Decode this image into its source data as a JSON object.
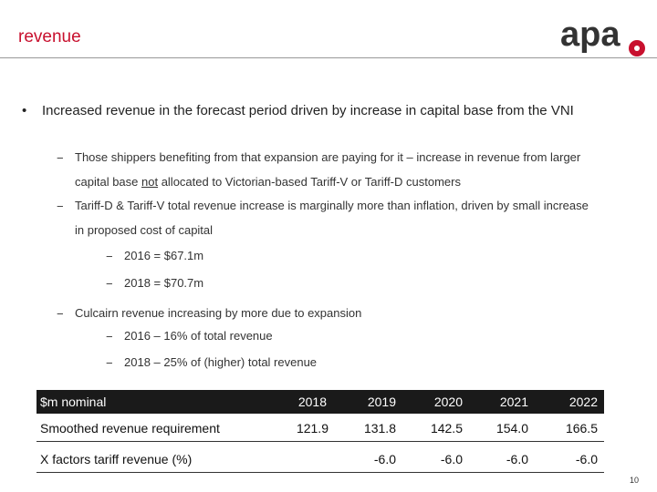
{
  "slide": {
    "title": "revenue",
    "page_number": "10"
  },
  "logo": {
    "text": "apa"
  },
  "bullet": {
    "symbol": "•",
    "text": "Increased revenue in the forecast period driven by increase in capital base from the VNI"
  },
  "sub_bullets": [
    {
      "dash": "−",
      "line1": "Those shippers benefiting from that expansion are paying for it – increase in revenue from  larger",
      "line2_pre": "capital base ",
      "line2_u": "not",
      "line2_post": " allocated to Victorian-based Tariff-V or Tariff-D customers"
    },
    {
      "dash": "−",
      "line1": "Tariff-D & Tariff-V total revenue increase is marginally more than inflation, driven by small increase",
      "line2": "in proposed cost of capital"
    },
    {
      "dash": "−",
      "line1": "Culcairn revenue increasing by more due to expansion"
    }
  ],
  "sub_sub": [
    {
      "dash": "−",
      "text": "2016 = $67.1m"
    },
    {
      "dash": "−",
      "text": "2018 = $70.7m"
    },
    {
      "dash": "−",
      "text": "2016 – 16% of total revenue"
    },
    {
      "dash": "−",
      "text": "2018 – 25% of (higher) total revenue"
    }
  ],
  "table": {
    "header": [
      "$m nominal",
      "2018",
      "2019",
      "2020",
      "2021",
      "2022"
    ],
    "rows": [
      [
        "Smoothed revenue requirement",
        "121.9",
        "131.8",
        "142.5",
        "154.0",
        "166.5"
      ],
      [
        "X factors tariff revenue (%)",
        "",
        "-6.0",
        "-6.0",
        "-6.0",
        "-6.0"
      ]
    ]
  },
  "colors": {
    "accent": "#c8102e",
    "logo_dark": "#333333",
    "header_bg": "#1a1a1a"
  }
}
